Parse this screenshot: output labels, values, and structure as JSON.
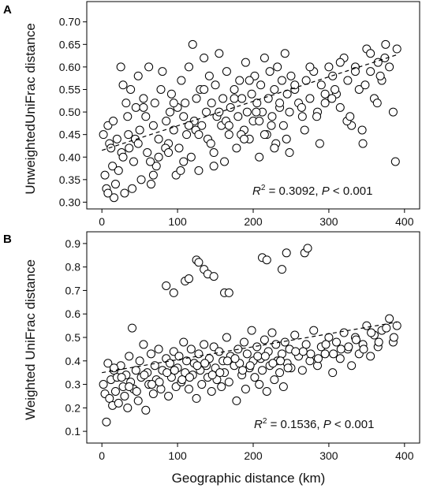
{
  "figure": {
    "shared_xlabel": "Geographic distance (km)"
  },
  "panels": [
    {
      "label": "A",
      "ylabel": "UnweightedUniFrac distance",
      "annotation": {
        "r2": "0.3092",
        "p": "0.001"
      }
    },
    {
      "label": "B",
      "ylabel": "Weighted UniFrac distance",
      "annotation": {
        "r2": "0.1536",
        "p": "0.001"
      }
    }
  ],
  "chart_data": [
    {
      "type": "scatter",
      "panel": "A",
      "title": "",
      "xlabel": "Geographic distance (km)",
      "ylabel": "UnweightedUniFrac distance",
      "xlim": [
        -20,
        420
      ],
      "ylim": [
        0.285,
        0.745
      ],
      "xticks": [
        0,
        100,
        200,
        300,
        400
      ],
      "yticks": [
        0.3,
        0.35,
        0.4,
        0.45,
        0.5,
        0.55,
        0.6,
        0.65,
        0.7
      ],
      "grid": false,
      "annotation": "R2 = 0.3092, P < 0.001",
      "trendline": {
        "x": [
          0,
          390
        ],
        "y": [
          0.415,
          0.627
        ],
        "style": "dashed"
      },
      "series": [
        {
          "x": [
            2,
            4,
            6,
            8,
            10,
            12,
            14,
            16,
            18,
            20,
            22,
            25,
            28,
            30,
            32,
            34,
            36,
            38,
            40,
            42,
            45,
            48,
            50,
            52,
            55,
            58,
            60,
            62,
            65,
            68,
            70,
            72,
            75,
            78,
            80,
            85,
            88,
            90,
            92,
            95,
            98,
            100,
            102,
            105,
            108,
            110,
            112,
            115,
            118,
            120,
            122,
            125,
            128,
            130,
            132,
            135,
            138,
            140,
            142,
            145,
            148,
            150,
            152,
            155,
            158,
            160,
            162,
            165,
            168,
            170,
            175,
            178,
            180,
            182,
            185,
            188,
            190,
            192,
            195,
            198,
            200,
            202,
            205,
            208,
            210,
            212,
            215,
            218,
            220,
            222,
            225,
            228,
            230,
            232,
            235,
            238,
            240,
            242,
            245,
            248,
            250,
            255,
            260,
            265,
            270,
            275,
            280,
            285,
            290,
            295,
            300,
            305,
            310,
            315,
            320,
            325,
            330,
            335,
            340,
            345,
            350,
            355,
            360,
            365,
            370,
            380,
            385,
            390,
            26,
            44,
            64,
            84,
            104,
            124,
            144,
            164,
            184,
            204,
            224,
            244,
            264,
            284,
            304,
            324,
            344,
            364,
            374,
            8,
            28,
            48,
            68,
            88,
            108,
            128,
            148,
            168,
            188,
            208,
            228,
            248,
            268,
            288,
            308,
            328,
            348,
            368,
            388,
            15,
            35,
            55,
            75,
            95,
            115,
            135,
            155,
            175,
            195,
            215,
            235,
            255,
            275,
            295,
            315,
            335,
            355,
            375
          ],
          "y": [
            0.45,
            0.36,
            0.33,
            0.47,
            0.43,
            0.42,
            0.38,
            0.31,
            0.34,
            0.44,
            0.37,
            0.6,
            0.56,
            0.32,
            0.52,
            0.49,
            0.42,
            0.55,
            0.33,
            0.39,
            0.51,
            0.58,
            0.46,
            0.35,
            0.53,
            0.49,
            0.41,
            0.6,
            0.34,
            0.47,
            0.52,
            0.38,
            0.44,
            0.55,
            0.59,
            0.48,
            0.43,
            0.5,
            0.54,
            0.46,
            0.36,
            0.51,
            0.42,
            0.57,
            0.49,
            0.52,
            0.45,
            0.6,
            0.4,
            0.65,
            0.48,
            0.53,
            0.37,
            0.55,
            0.47,
            0.62,
            0.5,
            0.44,
            0.58,
            0.52,
            0.41,
            0.56,
            0.49,
            0.63,
            0.47,
            0.53,
            0.39,
            0.59,
            0.45,
            0.51,
            0.55,
            0.42,
            0.49,
            0.57,
            0.53,
            0.46,
            0.61,
            0.5,
            0.44,
            0.54,
            0.48,
            0.58,
            0.52,
            0.4,
            0.56,
            0.5,
            0.62,
            0.45,
            0.53,
            0.59,
            0.49,
            0.55,
            0.43,
            0.6,
            0.51,
            0.57,
            0.47,
            0.63,
            0.54,
            0.41,
            0.58,
            0.55,
            0.52,
            0.49,
            0.57,
            0.53,
            0.59,
            0.5,
            0.56,
            0.52,
            0.6,
            0.58,
            0.54,
            0.51,
            0.62,
            0.57,
            0.47,
            0.6,
            0.55,
            0.43,
            0.64,
            0.59,
            0.53,
            0.61,
            0.57,
            0.6,
            0.5,
            0.64,
            0.41,
            0.44,
            0.39,
            0.42,
            0.37,
            0.46,
            0.43,
            0.48,
            0.45,
            0.5,
            0.47,
            0.44,
            0.51,
            0.49,
            0.53,
            0.48,
            0.46,
            0.52,
            0.62,
            0.32,
            0.4,
            0.43,
            0.36,
            0.41,
            0.39,
            0.45,
            0.38,
            0.47,
            0.44,
            0.48,
            0.42,
            0.5,
            0.46,
            0.43,
            0.55,
            0.49,
            0.56,
            0.58,
            0.39,
            0.48,
            0.45,
            0.51,
            0.4,
            0.52,
            0.47,
            0.55,
            0.5,
            0.53,
            0.57,
            0.45,
            0.52,
            0.56,
            0.6,
            0.54,
            0.61,
            0.59,
            0.63,
            0.65
          ]
        }
      ]
    },
    {
      "type": "scatter",
      "panel": "B",
      "title": "",
      "xlabel": "Geographic distance (km)",
      "ylabel": "Weighted UniFrac distance",
      "xlim": [
        -20,
        420
      ],
      "ylim": [
        0.05,
        0.95
      ],
      "xticks": [
        0,
        100,
        200,
        300,
        400
      ],
      "yticks": [
        0.1,
        0.2,
        0.3,
        0.4,
        0.5,
        0.6,
        0.7,
        0.8,
        0.9
      ],
      "grid": false,
      "annotation": "R2 = 0.1536, P < 0.001",
      "trendline": {
        "x": [
          0,
          390
        ],
        "y": [
          0.35,
          0.565
        ],
        "style": "dashed"
      },
      "series": [
        {
          "x": [
            2,
            4,
            6,
            8,
            10,
            12,
            14,
            16,
            18,
            20,
            22,
            25,
            28,
            30,
            32,
            34,
            36,
            38,
            40,
            42,
            45,
            48,
            50,
            52,
            55,
            58,
            60,
            62,
            65,
            68,
            70,
            72,
            75,
            78,
            80,
            85,
            88,
            90,
            92,
            95,
            98,
            100,
            102,
            105,
            108,
            110,
            112,
            115,
            118,
            120,
            122,
            125,
            128,
            130,
            132,
            135,
            138,
            140,
            142,
            145,
            148,
            150,
            152,
            155,
            158,
            160,
            162,
            165,
            168,
            170,
            175,
            178,
            180,
            182,
            185,
            188,
            190,
            192,
            195,
            198,
            200,
            202,
            205,
            208,
            210,
            212,
            215,
            218,
            220,
            222,
            225,
            228,
            230,
            232,
            235,
            238,
            240,
            242,
            245,
            248,
            250,
            255,
            260,
            265,
            270,
            275,
            280,
            285,
            290,
            295,
            300,
            305,
            310,
            315,
            320,
            325,
            330,
            335,
            340,
            345,
            350,
            355,
            360,
            365,
            370,
            380,
            385,
            390,
            85,
            95,
            110,
            115,
            125,
            128,
            135,
            140,
            148,
            162,
            168,
            212,
            218,
            238,
            244,
            268,
            272,
            26,
            46,
            66,
            86,
            106,
            126,
            146,
            166,
            186,
            206,
            226,
            246,
            266,
            286,
            306,
            326,
            346,
            366,
            386,
            16,
            36,
            56,
            76,
            96,
            116,
            136,
            156,
            176,
            196,
            216,
            236,
            256,
            276,
            296,
            316,
            336,
            356,
            376
          ],
          "y": [
            0.3,
            0.26,
            0.14,
            0.39,
            0.24,
            0.32,
            0.21,
            0.36,
            0.27,
            0.33,
            0.22,
            0.38,
            0.29,
            0.25,
            0.34,
            0.2,
            0.42,
            0.31,
            0.54,
            0.28,
            0.36,
            0.23,
            0.4,
            0.33,
            0.47,
            0.19,
            0.35,
            0.3,
            0.43,
            0.26,
            0.38,
            0.32,
            0.45,
            0.28,
            0.36,
            0.41,
            0.25,
            0.39,
            0.33,
            0.44,
            0.29,
            0.37,
            0.42,
            0.31,
            0.48,
            0.35,
            0.4,
            0.28,
            0.45,
            0.34,
            0.39,
            0.24,
            0.43,
            0.36,
            0.3,
            0.47,
            0.38,
            0.33,
            0.41,
            0.27,
            0.46,
            0.37,
            0.32,
            0.44,
            0.29,
            0.4,
            0.35,
            0.5,
            0.31,
            0.42,
            0.38,
            0.23,
            0.45,
            0.39,
            0.34,
            0.48,
            0.28,
            0.43,
            0.37,
            0.53,
            0.4,
            0.33,
            0.46,
            0.3,
            0.41,
            0.36,
            0.49,
            0.27,
            0.44,
            0.38,
            0.52,
            0.32,
            0.47,
            0.4,
            0.35,
            0.43,
            0.29,
            0.48,
            0.39,
            0.45,
            0.37,
            0.51,
            0.42,
            0.36,
            0.47,
            0.4,
            0.53,
            0.38,
            0.46,
            0.43,
            0.5,
            0.35,
            0.48,
            0.41,
            0.52,
            0.45,
            0.38,
            0.5,
            0.43,
            0.47,
            0.55,
            0.42,
            0.51,
            0.46,
            0.53,
            0.58,
            0.48,
            0.55,
            0.72,
            0.69,
            0.74,
            0.75,
            0.83,
            0.82,
            0.79,
            0.77,
            0.76,
            0.69,
            0.69,
            0.84,
            0.83,
            0.79,
            0.86,
            0.86,
            0.88,
            0.33,
            0.27,
            0.3,
            0.35,
            0.32,
            0.38,
            0.34,
            0.4,
            0.36,
            0.42,
            0.39,
            0.37,
            0.44,
            0.41,
            0.43,
            0.46,
            0.45,
            0.48,
            0.5,
            0.37,
            0.29,
            0.34,
            0.31,
            0.36,
            0.33,
            0.39,
            0.35,
            0.41,
            0.38,
            0.42,
            0.4,
            0.44,
            0.43,
            0.47,
            0.45,
            0.49,
            0.52,
            0.54
          ]
        }
      ]
    }
  ]
}
